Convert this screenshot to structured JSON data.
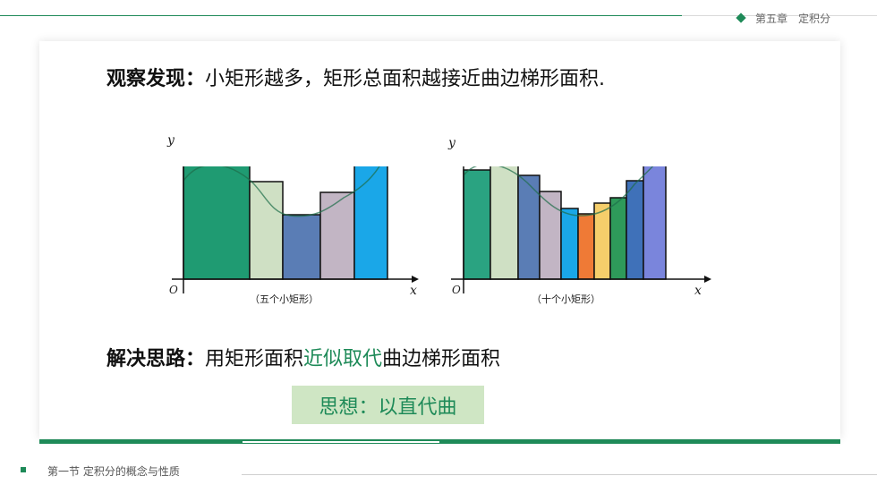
{
  "header": {
    "chapter": "第五章　定积分"
  },
  "main": {
    "observe_label": "观察发现：",
    "observe_text": "小矩形越多，矩形总面积越接近曲边梯形面积.",
    "solve_label": "解决思路：",
    "solve_pre": "用矩形面积",
    "solve_highlight": "近似取代",
    "solve_post": "曲边梯形面积",
    "idea": "思想：以直代曲"
  },
  "figures": {
    "left": {
      "caption": "（五个小矩形）",
      "x_label": "x",
      "y_label": "y",
      "origin": "O"
    },
    "right": {
      "caption": "（十个小矩形）",
      "x_label": "x",
      "y_label": "y",
      "origin": "O"
    }
  },
  "colors": {
    "accent": "#1e8a58",
    "five": [
      "#1f9b72",
      "#cfe0c4",
      "#5a7db5",
      "#c2b5c4",
      "#1aa7e8"
    ],
    "ten": [
      "#2aa381",
      "#cfe0c4",
      "#5a7db5",
      "#c2b5c4",
      "#1aa7e8",
      "#ef7a36",
      "#f5ce6b",
      "#2e9a5a",
      "#3f71b9",
      "#7a85dc"
    ]
  },
  "footer": {
    "section": "第一节  定积分的概念与性质"
  }
}
